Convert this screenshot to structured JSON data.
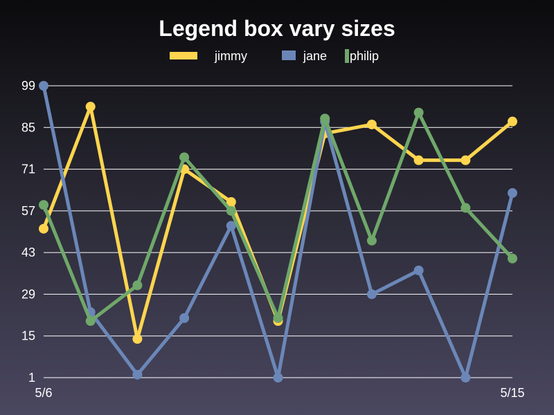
{
  "chart_data": {
    "type": "line",
    "title": "Legend box vary sizes",
    "x_start_label": "5/6",
    "x_end_label": "5/15",
    "x": [
      0,
      1,
      2,
      3,
      4,
      5,
      6,
      7,
      8,
      9,
      10
    ],
    "yticks": [
      "99",
      "85",
      "71",
      "57",
      "43",
      "29",
      "15",
      "1"
    ],
    "ylim": [
      1,
      99
    ],
    "grid": true,
    "legend_position": "top",
    "series": [
      {
        "name": "jimmy",
        "color": "#ffd54f",
        "values": [
          51,
          92,
          14,
          71,
          60,
          20,
          83,
          86,
          74,
          74,
          87
        ]
      },
      {
        "name": "jane",
        "color": "#6b87b8",
        "values": [
          99,
          23,
          2,
          21,
          52,
          1,
          87,
          29,
          37,
          1,
          63
        ]
      },
      {
        "name": "philip",
        "color": "#6fa86a",
        "values": [
          59,
          20,
          32,
          75,
          57,
          21,
          88,
          47,
          90,
          58,
          41
        ]
      }
    ]
  }
}
